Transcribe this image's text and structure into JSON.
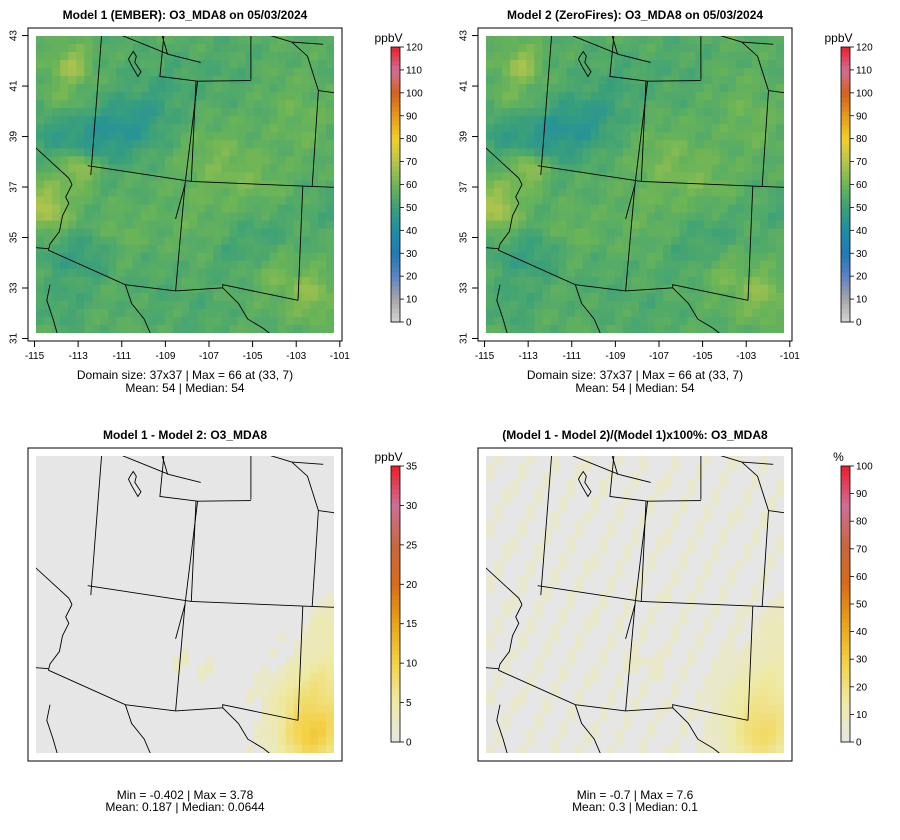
{
  "chart_data": [
    {
      "id": "p1",
      "type": "heatmap",
      "title": "Model 1 (EMBER): O3_MDA8 on 05/03/2024",
      "variable": "O3_MDA8",
      "date": "05/03/2024",
      "x_ticks": [
        "-115",
        "-113",
        "-111",
        "-109",
        "-107",
        "-105",
        "-103",
        "-101"
      ],
      "y_ticks": [
        "31",
        "33",
        "35",
        "37",
        "39",
        "41",
        "43"
      ],
      "xlim": [
        -115.3,
        -100.9
      ],
      "ylim": [
        30.9,
        43.3
      ],
      "colorbar": {
        "unit": "ppbV",
        "ticks": [
          "0",
          "10",
          "20",
          "30",
          "40",
          "50",
          "60",
          "70",
          "80",
          "90",
          "100",
          "110",
          "120"
        ],
        "min": 0,
        "max": 120
      },
      "stats_line1": "Domain size: 37x37 | Max = 66 at (33, 7)",
      "stats_line2": "Mean: 54 |  Median: 54",
      "domain_size": "37x37",
      "max": 66,
      "mean": 54,
      "median": 54,
      "field_mode": "ozone"
    },
    {
      "id": "p2",
      "type": "heatmap",
      "title": "Model 2 (ZeroFires): O3_MDA8 on 05/03/2024",
      "variable": "O3_MDA8",
      "date": "05/03/2024",
      "x_ticks": [
        "-115",
        "-113",
        "-111",
        "-109",
        "-107",
        "-105",
        "-103",
        "-101"
      ],
      "y_ticks": [
        "31",
        "33",
        "35",
        "37",
        "39",
        "41",
        "43"
      ],
      "xlim": [
        -115.3,
        -100.9
      ],
      "ylim": [
        30.9,
        43.3
      ],
      "colorbar": {
        "unit": "ppbV",
        "ticks": [
          "0",
          "10",
          "20",
          "30",
          "40",
          "50",
          "60",
          "70",
          "80",
          "90",
          "100",
          "110",
          "120"
        ],
        "min": 0,
        "max": 120
      },
      "stats_line1": "Domain size: 37x37 | Max = 66 at (33, 7)",
      "stats_line2": "Mean: 54 |  Median: 54",
      "domain_size": "37x37",
      "max": 66,
      "mean": 54,
      "median": 54,
      "field_mode": "ozone"
    },
    {
      "id": "p3",
      "type": "heatmap",
      "title": "Model 1 - Model 2: O3_MDA8",
      "variable": "O3_MDA8",
      "x_ticks": [],
      "y_ticks": [],
      "xlim": [
        -115.3,
        -100.9
      ],
      "ylim": [
        30.9,
        43.3
      ],
      "colorbar": {
        "unit": "ppbV",
        "ticks": [
          "0",
          "5",
          "10",
          "15",
          "20",
          "25",
          "30",
          "35"
        ],
        "min": 0,
        "max": 35
      },
      "stats_line1": "Min = -0.402 | Max = 3.78",
      "stats_line2": "Mean: 0.187 |  Median: 0.0644",
      "min": -0.402,
      "max": 3.78,
      "mean": 0.187,
      "median": 0.0644,
      "field_mode": "diff_abs"
    },
    {
      "id": "p4",
      "type": "heatmap",
      "title": "(Model 1 - Model 2)/(Model 1)x100%: O3_MDA8",
      "variable": "O3_MDA8",
      "x_ticks": [],
      "y_ticks": [],
      "xlim": [
        -115.3,
        -100.9
      ],
      "ylim": [
        30.9,
        43.3
      ],
      "colorbar": {
        "unit": "%",
        "ticks": [
          "0",
          "10",
          "20",
          "30",
          "40",
          "50",
          "60",
          "70",
          "80",
          "90",
          "100"
        ],
        "min": 0,
        "max": 100
      },
      "stats_line1": "Min = -0.7 | Max = 7.6",
      "stats_line2": "Mean: 0.3 |  Median: 0.1",
      "min": -0.7,
      "max": 7.6,
      "mean": 0.3,
      "median": 0.1,
      "field_mode": "diff_pct"
    }
  ],
  "colors": {
    "ozone_ramp": [
      "#d6d6d6",
      "#a6a6a6",
      "#5b84c4",
      "#1f7ab7",
      "#1e8da5",
      "#3aa07a",
      "#6db556",
      "#b5c64c",
      "#f0d02b",
      "#e89a1a",
      "#d8601c",
      "#cf6f95",
      "#ef1d2a"
    ],
    "diff_ramp": [
      "#e6e6e6",
      "#eeeaa5",
      "#f3d247",
      "#eba417",
      "#db6b18",
      "#c9663f",
      "#cf6f95",
      "#ef1d2a"
    ],
    "panel_background": "#e6e6e6",
    "boundary_line": "#000000"
  }
}
